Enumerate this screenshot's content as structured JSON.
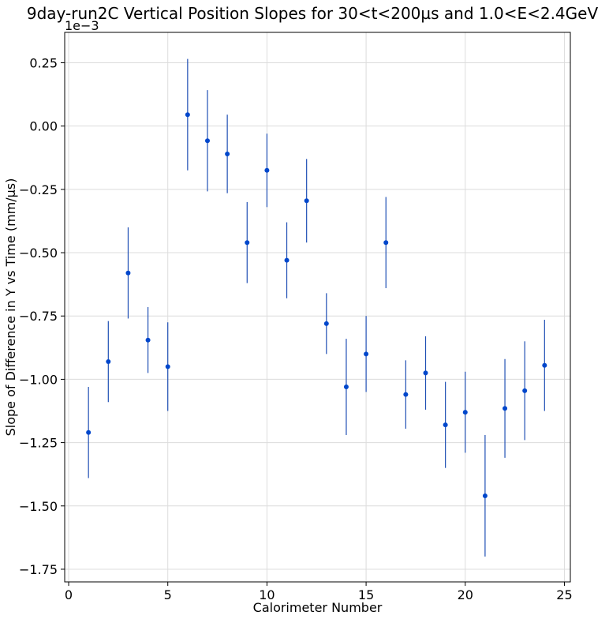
{
  "chart_data": {
    "type": "scatter",
    "title": "9day-run2C Vertical Position Slopes for 30<t<200µs and 1.0<E<2.4GeV",
    "xlabel": "Calorimeter Number",
    "ylabel": "Slope of Difference in Y vs Time (mm/µs)",
    "offset_label": "1e−3",
    "xlim": [
      -0.2,
      25.3
    ],
    "ylim": [
      -1.8,
      0.37
    ],
    "xticks": [
      0,
      5,
      10,
      15,
      20,
      25
    ],
    "xtick_labels": [
      "0",
      "5",
      "10",
      "15",
      "20",
      "25"
    ],
    "yticks": [
      0.25,
      0.0,
      -0.25,
      -0.5,
      -0.75,
      -1.0,
      -1.25,
      -1.5,
      -1.75
    ],
    "ytick_labels": [
      "0.25",
      "0.00",
      "−0.25",
      "−0.50",
      "−0.75",
      "−1.00",
      "−1.25",
      "−1.50",
      "−1.75"
    ],
    "grid": true,
    "marker_color": "#0047cc",
    "errorbar_color": "#1f4fb4",
    "points": [
      {
        "x": 1,
        "y": -1.21,
        "err": 0.18
      },
      {
        "x": 2,
        "y": -0.93,
        "err": 0.16
      },
      {
        "x": 3,
        "y": -0.58,
        "err": 0.18
      },
      {
        "x": 4,
        "y": -0.845,
        "err": 0.13
      },
      {
        "x": 5,
        "y": -0.95,
        "err": 0.175
      },
      {
        "x": 6,
        "y": 0.045,
        "err": 0.22
      },
      {
        "x": 7,
        "y": -0.058,
        "err": 0.2
      },
      {
        "x": 8,
        "y": -0.11,
        "err": 0.155
      },
      {
        "x": 9,
        "y": -0.46,
        "err": 0.16
      },
      {
        "x": 10,
        "y": -0.175,
        "err": 0.145
      },
      {
        "x": 11,
        "y": -0.53,
        "err": 0.15
      },
      {
        "x": 12,
        "y": -0.295,
        "err": 0.165
      },
      {
        "x": 13,
        "y": -0.78,
        "err": 0.12
      },
      {
        "x": 14,
        "y": -1.03,
        "err": 0.19
      },
      {
        "x": 15,
        "y": -0.9,
        "err": 0.15
      },
      {
        "x": 16,
        "y": -0.46,
        "err": 0.18
      },
      {
        "x": 17,
        "y": -1.06,
        "err": 0.135
      },
      {
        "x": 18,
        "y": -0.975,
        "err": 0.145
      },
      {
        "x": 19,
        "y": -1.18,
        "err": 0.17
      },
      {
        "x": 20,
        "y": -1.13,
        "err": 0.16
      },
      {
        "x": 21,
        "y": -1.46,
        "err": 0.24
      },
      {
        "x": 22,
        "y": -1.115,
        "err": 0.195
      },
      {
        "x": 23,
        "y": -1.045,
        "err": 0.195
      },
      {
        "x": 24,
        "y": -0.945,
        "err": 0.18
      }
    ]
  }
}
